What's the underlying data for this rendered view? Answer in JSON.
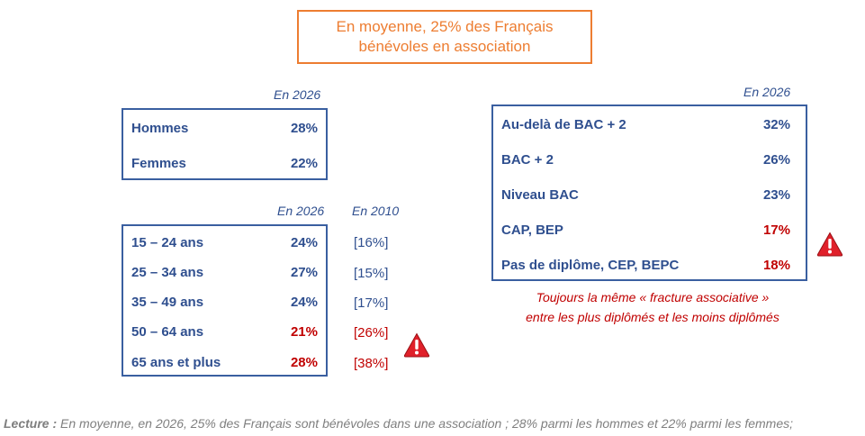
{
  "title": {
    "line1": "En moyenne, 25% des Français",
    "line2": "bénévoles en association"
  },
  "sex_table": {
    "year_label": "En 2026",
    "rows": [
      {
        "label": "Hommes",
        "value": "28%"
      },
      {
        "label": "Femmes",
        "value": "22%"
      }
    ]
  },
  "age_table": {
    "year_label": "En 2026",
    "old_year_label": "En 2010",
    "rows": [
      {
        "label": "15 – 24 ans",
        "value": "24%",
        "old": "[16%]"
      },
      {
        "label": "25 – 34 ans",
        "value": "27%",
        "old": "[15%]"
      },
      {
        "label": "35 – 49 ans",
        "value": "24%",
        "old": "[17%]"
      },
      {
        "label": "50 – 64 ans",
        "value": "21%",
        "old": "[26%]"
      },
      {
        "label": "65 ans et plus",
        "value": "28%",
        "old": "[38%]"
      }
    ]
  },
  "edu_table": {
    "year_label": "En 2026",
    "rows": [
      {
        "label": "Au-delà de BAC + 2",
        "value": "32%"
      },
      {
        "label": "BAC + 2",
        "value": "26%"
      },
      {
        "label": "Niveau BAC",
        "value": "23%"
      },
      {
        "label": "CAP, BEP",
        "value": "17%"
      },
      {
        "label": "Pas de diplôme, CEP, BEPC",
        "value": "18%"
      }
    ],
    "note_line1": "Toujours la même « fracture associative »",
    "note_line2": "entre les plus diplômés et les moins diplômés"
  },
  "footer": {
    "prefix": "Lecture :",
    "text": " En moyenne, en 2026, 25% des Français sont bénévoles dans une association ; 28% parmi les hommes et 22% parmi les femmes;"
  },
  "colors": {
    "accent": "#ED7D31",
    "blue": "#2F4F8F",
    "red": "#C00000",
    "warning": "#E0202A"
  },
  "icons": [
    "warning-icon"
  ]
}
